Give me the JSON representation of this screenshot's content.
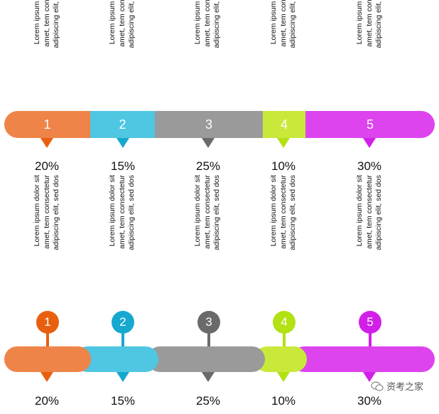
{
  "desc_text": "Lorem ipsum dolor sit\namet, tem consectetur\nadipiscing elit, sed dos",
  "items": [
    {
      "num": "1",
      "pct": "20%",
      "color": "#ee8447",
      "dark": "#e8600f"
    },
    {
      "num": "2",
      "pct": "15%",
      "color": "#4fc6e2",
      "dark": "#16a8cf"
    },
    {
      "num": "3",
      "pct": "25%",
      "color": "#9a9a9a",
      "dark": "#6a6a6a"
    },
    {
      "num": "4",
      "pct": "10%",
      "color": "#c8e93a",
      "dark": "#b2e114"
    },
    {
      "num": "5",
      "pct": "30%",
      "color": "#dd44ee",
      "dark": "#d21fe8"
    }
  ],
  "watermark": "资考之家"
}
